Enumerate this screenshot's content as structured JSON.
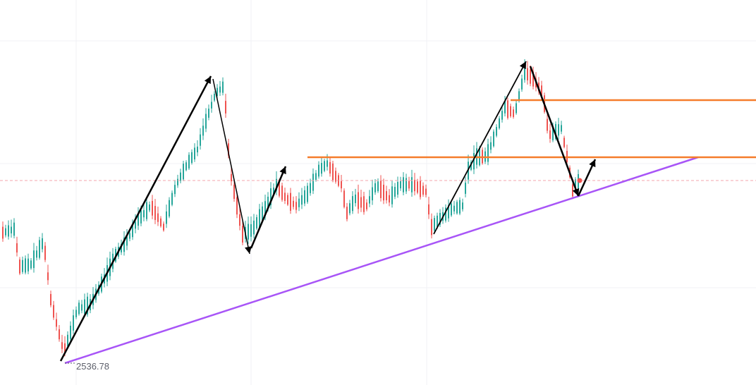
{
  "chart_data": {
    "type": "candlestick",
    "price_label": "2536.78",
    "colors": {
      "up": "#26a69a",
      "down": "#ef5350",
      "trendline": "#a855f7",
      "resistance": "#f57c2b",
      "arrows": "#000000",
      "current_price_line": "#f3a6ae",
      "grid": "#f1f2f5"
    },
    "annotations": [
      {
        "type": "trendline",
        "color": "#a855f7"
      },
      {
        "type": "horizontal-level",
        "color": "#f57c2b"
      },
      {
        "type": "horizontal-level",
        "color": "#f57c2b"
      },
      {
        "type": "arrow-path",
        "color": "#000000"
      }
    ]
  }
}
